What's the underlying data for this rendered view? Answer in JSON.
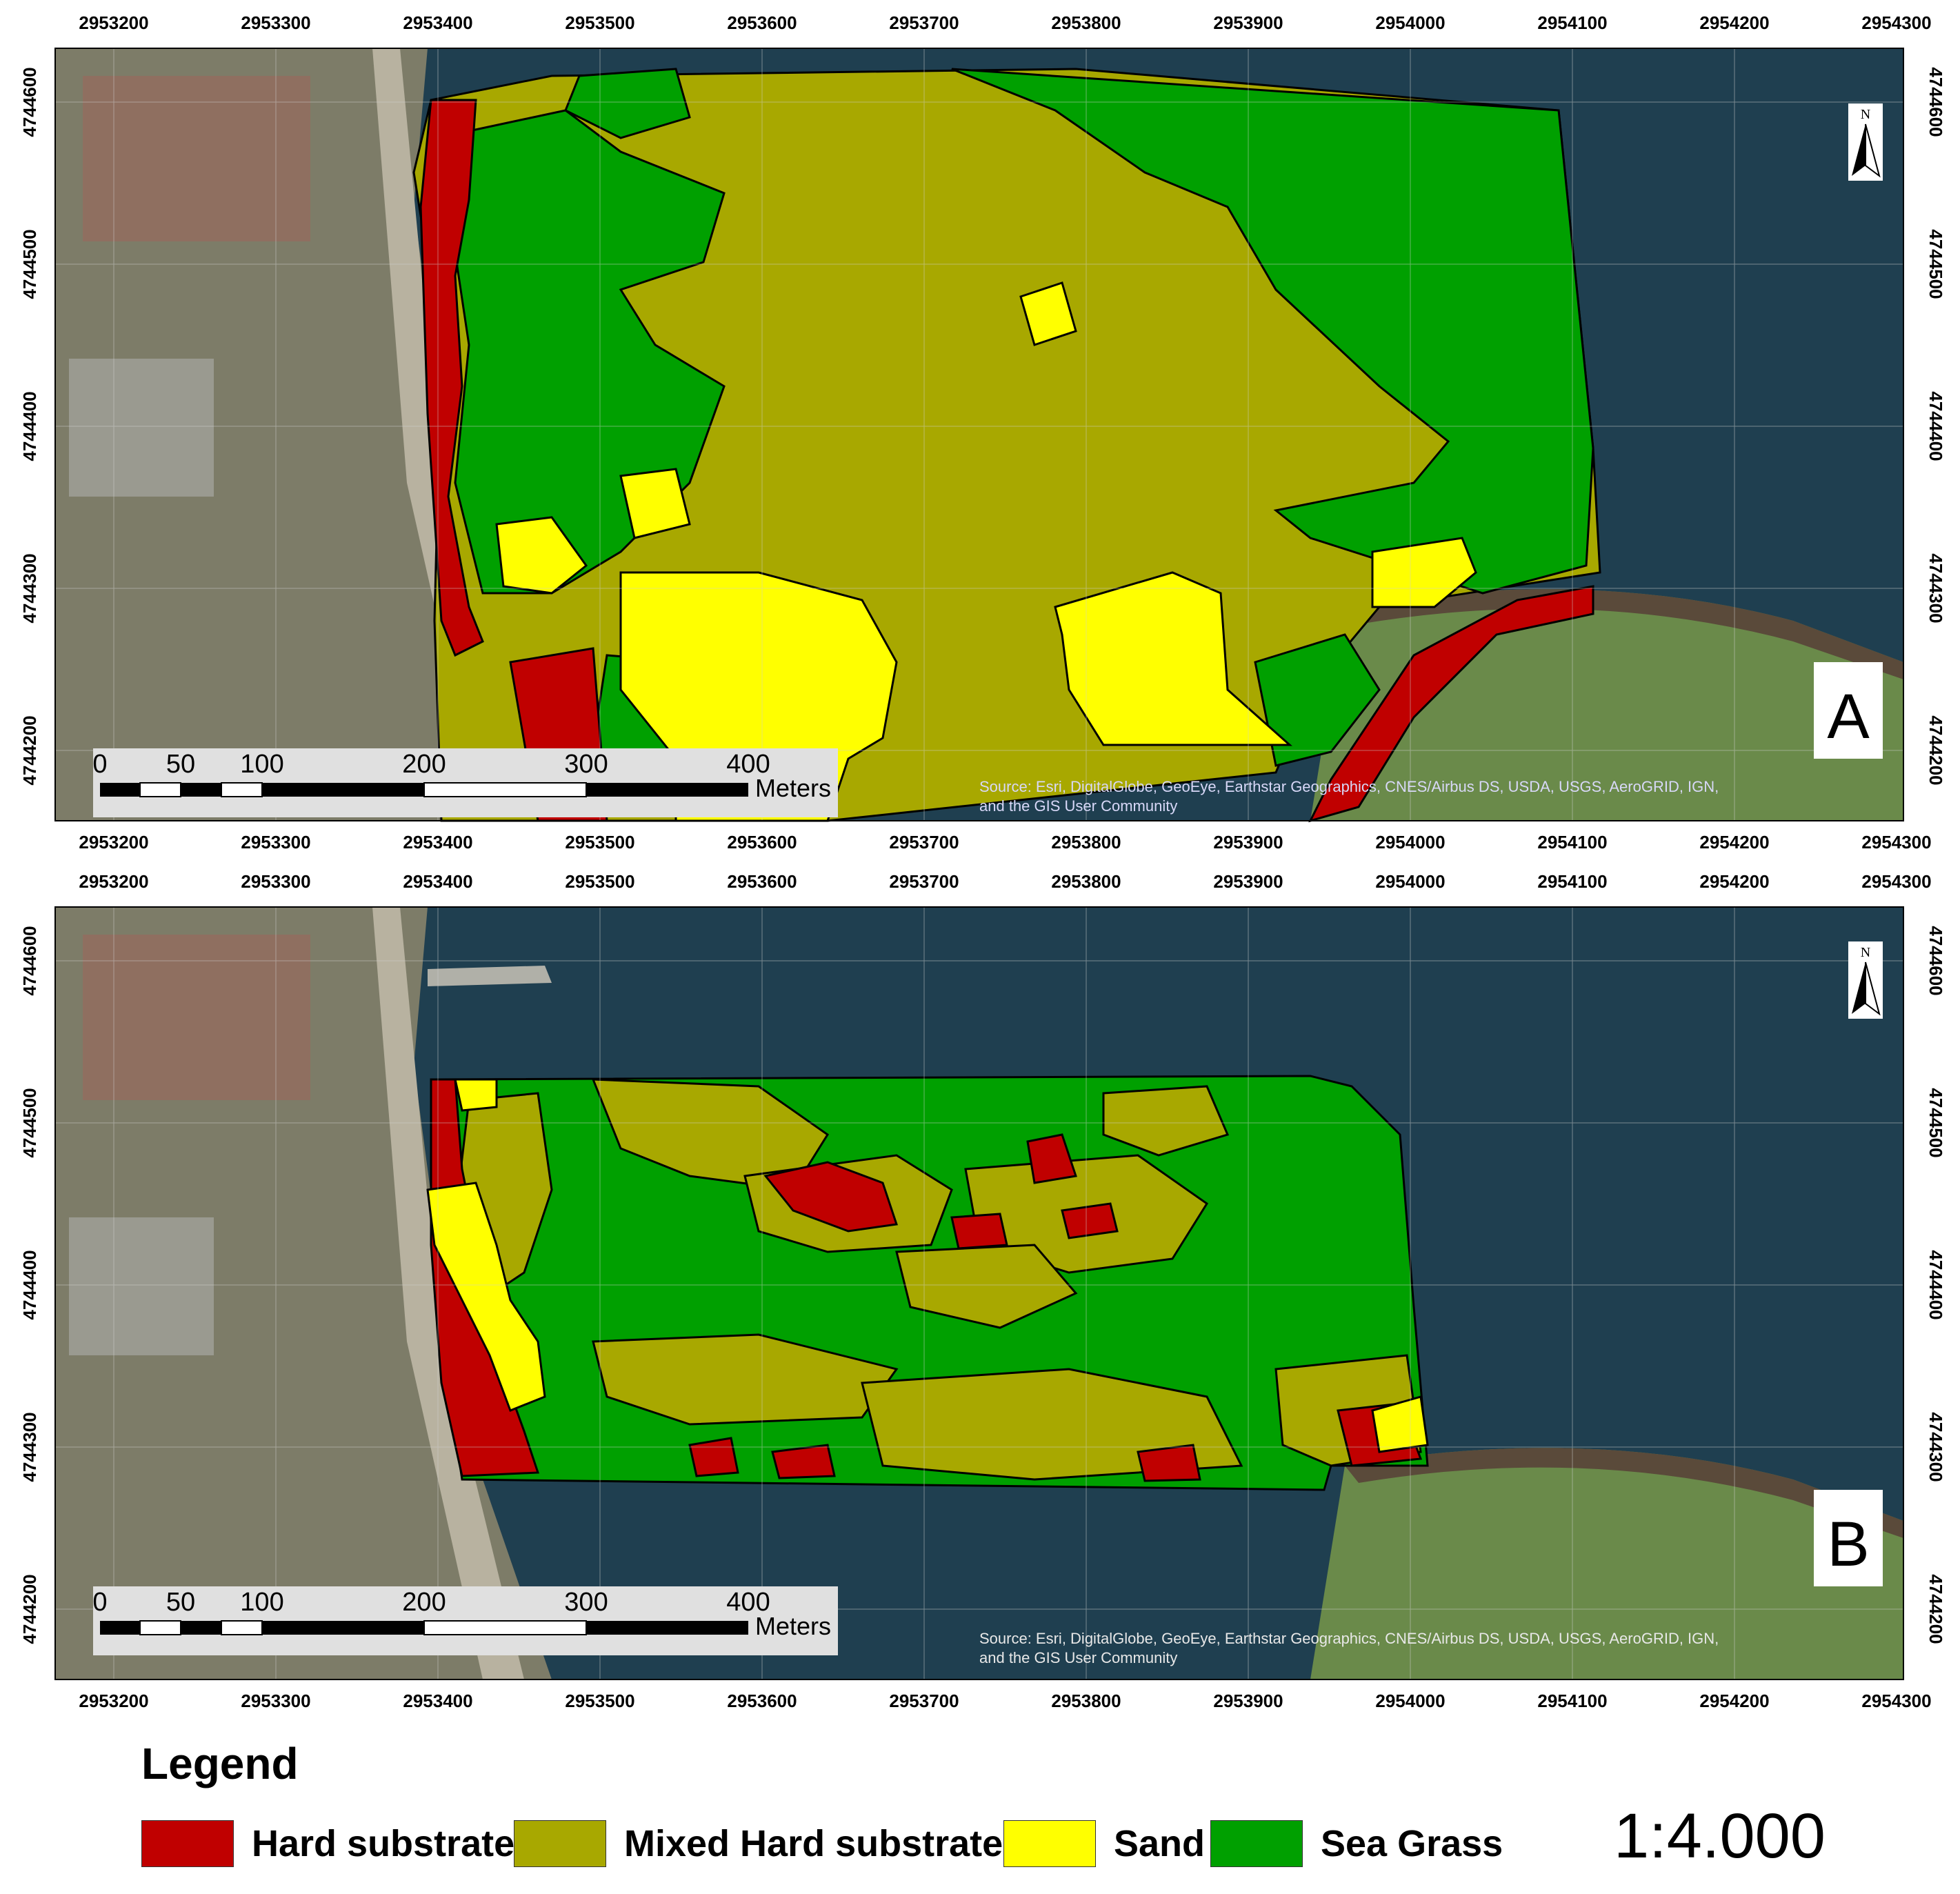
{
  "x_ticks": [
    "2953200",
    "2953300",
    "2953400",
    "2953500",
    "2953600",
    "2953700",
    "2953800",
    "2953900",
    "2954000",
    "2954100",
    "2954200",
    "2954300"
  ],
  "y_ticks_a": [
    "4744600",
    "4744500",
    "4744400",
    "4744300",
    "4744200"
  ],
  "y_ticks_b": [
    "4744600",
    "4744500",
    "4744400",
    "4744300",
    "4744200"
  ],
  "panels": [
    {
      "id": "a",
      "label": "A"
    },
    {
      "id": "b",
      "label": "B"
    }
  ],
  "north_label": "N",
  "scale_bar": {
    "ticks": [
      "0",
      "50",
      "100",
      "200",
      "300",
      "400"
    ],
    "unit": "Meters"
  },
  "attribution": {
    "line1": "Source: Esri, DigitalGlobe, GeoEye, Earthstar Geographics, CNES/Airbus DS, USDA, USGS, AeroGRID, IGN,",
    "line2": "and the GIS User Community"
  },
  "legend": {
    "title": "Legend",
    "items": [
      {
        "label": "Hard substrate",
        "color": "#c00000"
      },
      {
        "label": "Mixed Hard substrate",
        "color": "#a8a800"
      },
      {
        "label": "Sand",
        "color": "#ffff00"
      },
      {
        "label": "Sea Grass",
        "color": "#00a000"
      }
    ],
    "scale_ratio": "1:4.000"
  },
  "colors": {
    "sea": "#1f3f50",
    "land": "#8a8a70",
    "hard": "#c00000",
    "mixed": "#a8a800",
    "sand": "#ffff00",
    "grass": "#00a000"
  }
}
